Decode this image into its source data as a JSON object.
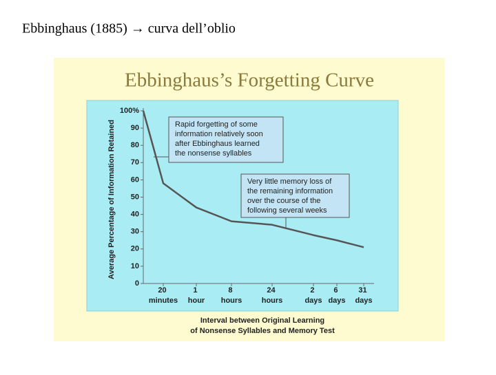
{
  "slide_title": "Ebbinghaus (1885) → curva dell’oblio",
  "chart_data": {
    "type": "line",
    "title": "Ebbinghaus’s Forgetting Curve",
    "x_label": [
      "Interval between Original Learning",
      "of Nonsense Syllables and Memory Test"
    ],
    "y_label": "Average Percentage of Information Retained",
    "categories": [
      null,
      "20 minutes",
      "1 hour",
      "8 hours",
      "24 hours",
      "2 days",
      "6 days",
      "31 days"
    ],
    "values": [
      100,
      58,
      44,
      36,
      34,
      28,
      25,
      21
    ],
    "color": "#555555",
    "ylim": [
      0,
      100
    ],
    "yticks": [
      0,
      10,
      20,
      30,
      40,
      50,
      60,
      70,
      80,
      90,
      {
        "value": 100,
        "label": "100%"
      }
    ],
    "annotations": [
      {
        "lines": [
          "Rapid forgetting of some",
          "information relatively soon",
          "after Ebbinghaus learned",
          "the nonsense syllables"
        ]
      },
      {
        "lines": [
          "Very little memory loss of",
          "the remaining information",
          "over the course of the",
          "following several weeks"
        ]
      }
    ]
  }
}
